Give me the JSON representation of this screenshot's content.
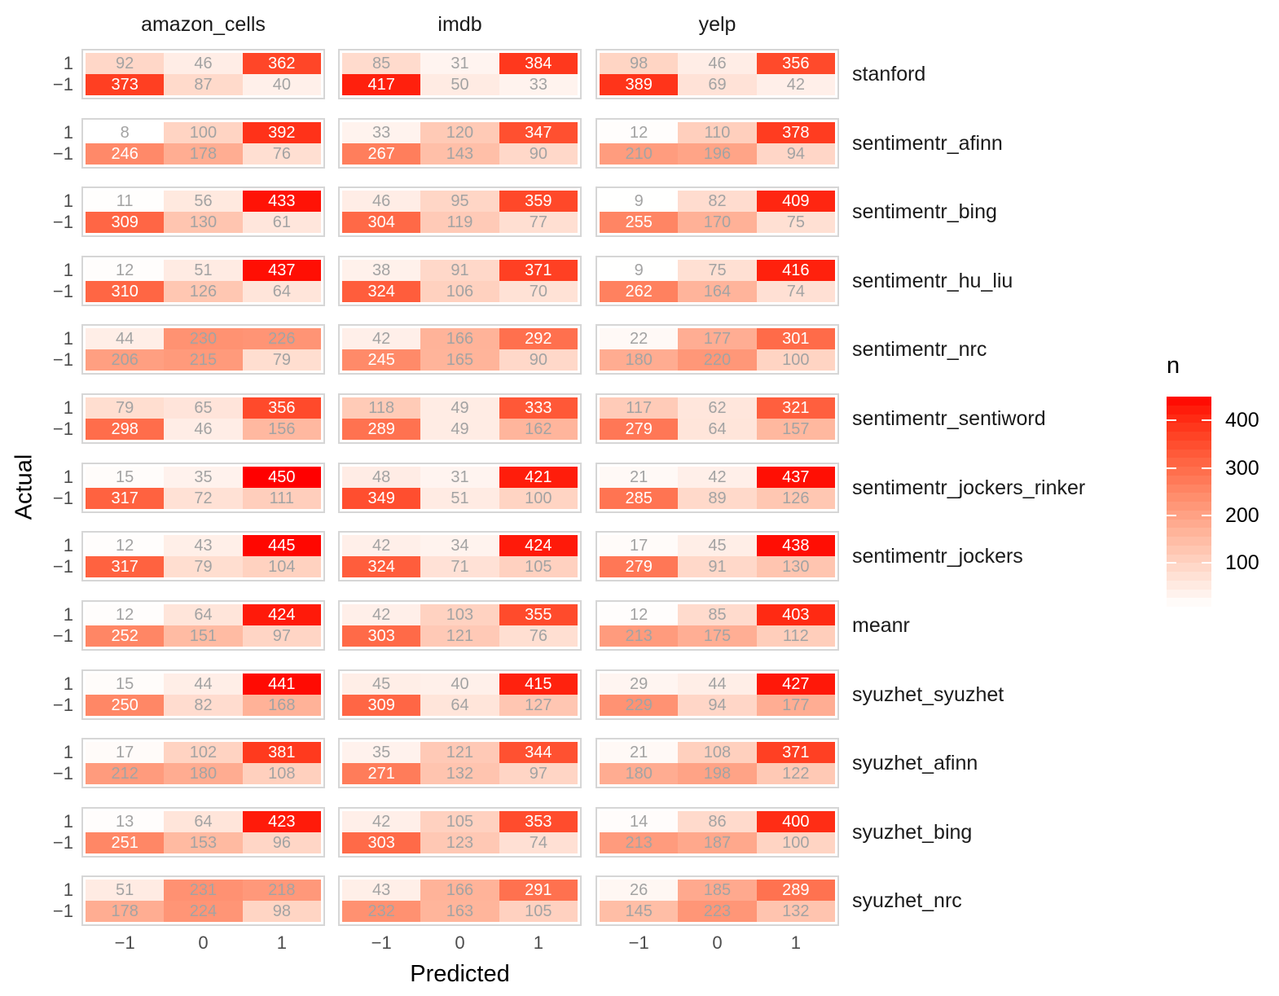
{
  "chart_data": {
    "type": "heatmap",
    "title": "",
    "xlabel": "Predicted",
    "ylabel": "Actual",
    "x_categories": [
      "−1",
      "0",
      "1"
    ],
    "y_categories": [
      "1",
      "−1"
    ],
    "facet_columns": [
      "amazon_cells",
      "imdb",
      "yelp"
    ],
    "facet_rows": [
      "stanford",
      "sentimentr_afinn",
      "sentimentr_bing",
      "sentimentr_hu_liu",
      "sentimentr_nrc",
      "sentimentr_sentiword",
      "sentimentr_jockers_rinker",
      "sentimentr_jockers",
      "meanr",
      "syuzhet_syuzhet",
      "syuzhet_afinn",
      "syuzhet_bing",
      "syuzhet_nrc"
    ],
    "legend": {
      "title": "n",
      "ticks": [
        400,
        300,
        200,
        100
      ],
      "domain_min": 8,
      "domain_max": 450,
      "low_color": "#FFFFFF",
      "high_color": "#FF0000"
    },
    "cells": [
      {
        "method": "stanford",
        "amazon_cells": [
          [
            92,
            46,
            362
          ],
          [
            373,
            87,
            40
          ]
        ],
        "imdb": [
          [
            85,
            31,
            384
          ],
          [
            417,
            50,
            33
          ]
        ],
        "yelp": [
          [
            98,
            46,
            356
          ],
          [
            389,
            69,
            42
          ]
        ]
      },
      {
        "method": "sentimentr_afinn",
        "amazon_cells": [
          [
            8,
            100,
            392
          ],
          [
            246,
            178,
            76
          ]
        ],
        "imdb": [
          [
            33,
            120,
            347
          ],
          [
            267,
            143,
            90
          ]
        ],
        "yelp": [
          [
            12,
            110,
            378
          ],
          [
            210,
            196,
            94
          ]
        ]
      },
      {
        "method": "sentimentr_bing",
        "amazon_cells": [
          [
            11,
            56,
            433
          ],
          [
            309,
            130,
            61
          ]
        ],
        "imdb": [
          [
            46,
            95,
            359
          ],
          [
            304,
            119,
            77
          ]
        ],
        "yelp": [
          [
            9,
            82,
            409
          ],
          [
            255,
            170,
            75
          ]
        ]
      },
      {
        "method": "sentimentr_hu_liu",
        "amazon_cells": [
          [
            12,
            51,
            437
          ],
          [
            310,
            126,
            64
          ]
        ],
        "imdb": [
          [
            38,
            91,
            371
          ],
          [
            324,
            106,
            70
          ]
        ],
        "yelp": [
          [
            9,
            75,
            416
          ],
          [
            262,
            164,
            74
          ]
        ]
      },
      {
        "method": "sentimentr_nrc",
        "amazon_cells": [
          [
            44,
            230,
            226
          ],
          [
            206,
            215,
            79
          ]
        ],
        "imdb": [
          [
            42,
            166,
            292
          ],
          [
            245,
            165,
            90
          ]
        ],
        "yelp": [
          [
            22,
            177,
            301
          ],
          [
            180,
            220,
            100
          ]
        ]
      },
      {
        "method": "sentimentr_sentiword",
        "amazon_cells": [
          [
            79,
            65,
            356
          ],
          [
            298,
            46,
            156
          ]
        ],
        "imdb": [
          [
            118,
            49,
            333
          ],
          [
            289,
            49,
            162
          ]
        ],
        "yelp": [
          [
            117,
            62,
            321
          ],
          [
            279,
            64,
            157
          ]
        ]
      },
      {
        "method": "sentimentr_jockers_rinker",
        "amazon_cells": [
          [
            15,
            35,
            450
          ],
          [
            317,
            72,
            111
          ]
        ],
        "imdb": [
          [
            48,
            31,
            421
          ],
          [
            349,
            51,
            100
          ]
        ],
        "yelp": [
          [
            21,
            42,
            437
          ],
          [
            285,
            89,
            126
          ]
        ]
      },
      {
        "method": "sentimentr_jockers",
        "amazon_cells": [
          [
            12,
            43,
            445
          ],
          [
            317,
            79,
            104
          ]
        ],
        "imdb": [
          [
            42,
            34,
            424
          ],
          [
            324,
            71,
            105
          ]
        ],
        "yelp": [
          [
            17,
            45,
            438
          ],
          [
            279,
            91,
            130
          ]
        ]
      },
      {
        "method": "meanr",
        "amazon_cells": [
          [
            12,
            64,
            424
          ],
          [
            252,
            151,
            97
          ]
        ],
        "imdb": [
          [
            42,
            103,
            355
          ],
          [
            303,
            121,
            76
          ]
        ],
        "yelp": [
          [
            12,
            85,
            403
          ],
          [
            213,
            175,
            112
          ]
        ]
      },
      {
        "method": "syuzhet_syuzhet",
        "amazon_cells": [
          [
            15,
            44,
            441
          ],
          [
            250,
            82,
            168
          ]
        ],
        "imdb": [
          [
            45,
            40,
            415
          ],
          [
            309,
            64,
            127
          ]
        ],
        "yelp": [
          [
            29,
            44,
            427
          ],
          [
            229,
            94,
            177
          ]
        ]
      },
      {
        "method": "syuzhet_afinn",
        "amazon_cells": [
          [
            17,
            102,
            381
          ],
          [
            212,
            180,
            108
          ]
        ],
        "imdb": [
          [
            35,
            121,
            344
          ],
          [
            271,
            132,
            97
          ]
        ],
        "yelp": [
          [
            21,
            108,
            371
          ],
          [
            180,
            198,
            122
          ]
        ]
      },
      {
        "method": "syuzhet_bing",
        "amazon_cells": [
          [
            13,
            64,
            423
          ],
          [
            251,
            153,
            96
          ]
        ],
        "imdb": [
          [
            42,
            105,
            353
          ],
          [
            303,
            123,
            74
          ]
        ],
        "yelp": [
          [
            14,
            86,
            400
          ],
          [
            213,
            187,
            100
          ]
        ]
      },
      {
        "method": "syuzhet_nrc",
        "amazon_cells": [
          [
            51,
            231,
            218
          ],
          [
            178,
            224,
            98
          ]
        ],
        "imdb": [
          [
            43,
            166,
            291
          ],
          [
            232,
            163,
            105
          ]
        ],
        "yelp": [
          [
            26,
            185,
            289
          ],
          [
            145,
            223,
            132
          ]
        ]
      }
    ]
  },
  "style": {
    "panel_border": "#d6d6d6",
    "tick_label_color": "#4d4d4d",
    "strip_label_color": "#1a1a1a",
    "cell_text_gray": "#a3a3a3",
    "cell_text_white": "#ffffff"
  }
}
